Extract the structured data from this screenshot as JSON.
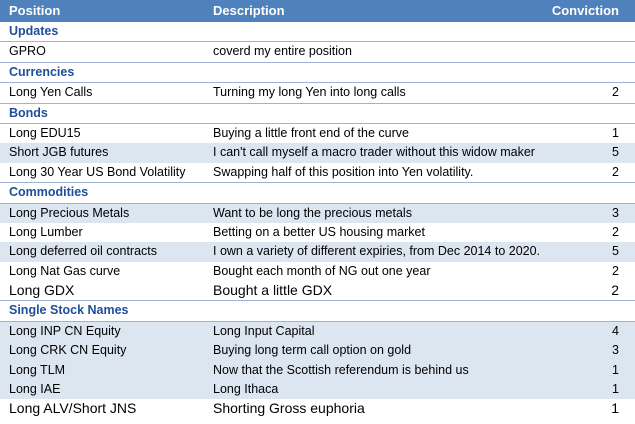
{
  "header": {
    "position": "Position",
    "description": "Description",
    "conviction": "Conviction"
  },
  "sections": [
    {
      "title": "Updates",
      "rows": [
        {
          "position": "GPRO",
          "description": "coverd my entire position",
          "conviction": ""
        }
      ]
    },
    {
      "title": "Currencies",
      "rows": [
        {
          "position": "Long Yen Calls",
          "description": "Turning my long Yen into long calls",
          "conviction": "2"
        }
      ]
    },
    {
      "title": "Bonds",
      "rows": [
        {
          "position": "Long EDU15",
          "description": "Buying a little front end of the curve",
          "conviction": "1"
        },
        {
          "position": "Short JGB futures",
          "description": "I can't call myself a macro trader without this widow maker",
          "conviction": "5"
        },
        {
          "position": "Long 30 Year US Bond Volatility",
          "description": "Swapping half of this position into Yen volatility.",
          "conviction": "2"
        }
      ]
    },
    {
      "title": "Commodities",
      "rows": [
        {
          "position": "Long Precious Metals",
          "description": "Want to be long the precious metals",
          "conviction": "3"
        },
        {
          "position": "Long Lumber",
          "description": "Betting on a better US housing market",
          "conviction": "2"
        },
        {
          "position": "Long deferred oil contracts",
          "description": "I own a variety of different expiries, from Dec 2014 to 2020.",
          "conviction": "5"
        },
        {
          "position": "Long Nat Gas curve",
          "description": "Bought each month of NG out one year",
          "conviction": "2"
        },
        {
          "position": "Long GDX",
          "description": "Bought a little GDX",
          "conviction": "2"
        }
      ]
    },
    {
      "title": "Single Stock Names",
      "rows": [
        {
          "position": "Long INP CN Equity",
          "description": "Long Input Capital",
          "conviction": "4"
        },
        {
          "position": "Long CRK CN Equity",
          "description": "Buying long term call option on gold",
          "conviction": "3"
        },
        {
          "position": "Long TLM",
          "description": "Now that the Scottish referendum is behind us",
          "conviction": "1"
        },
        {
          "position": "Long IAE",
          "description": "Long Ithaca",
          "conviction": "1"
        },
        {
          "position": "Long ALV/Short JNS",
          "description": "Shorting Gross euphoria",
          "conviction": "1"
        }
      ]
    }
  ],
  "colors": {
    "header_bg": "#4f81bd",
    "section_text": "#1f4e9a",
    "shaded_row": "#dce6f1"
  }
}
